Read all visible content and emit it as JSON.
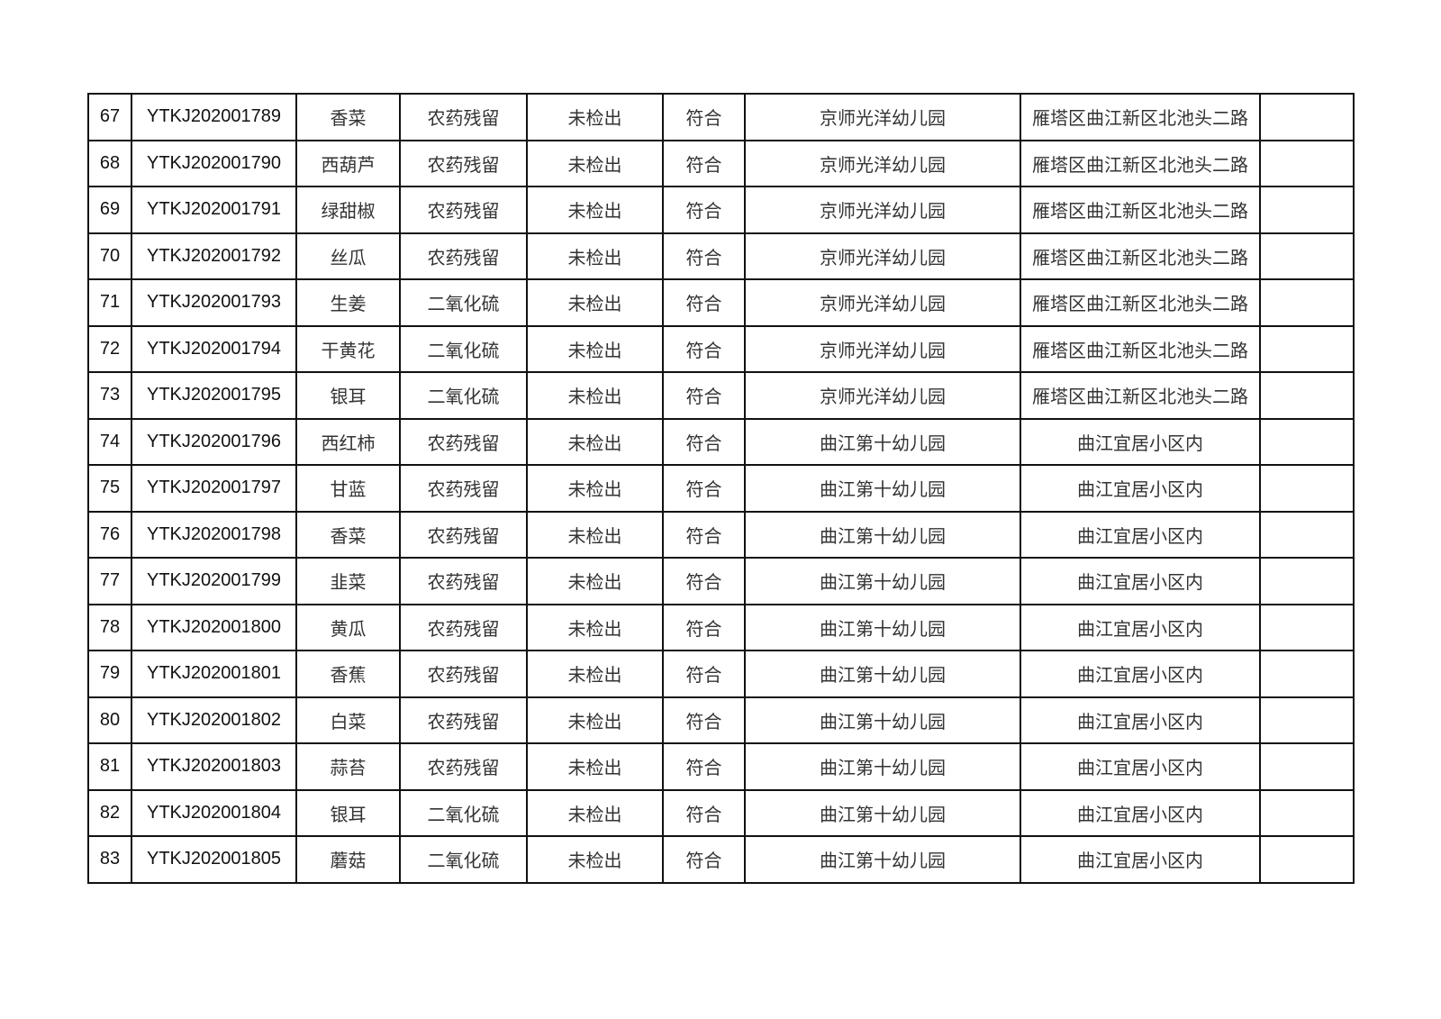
{
  "table": {
    "rows": [
      [
        "67",
        "YTKJ202001789",
        "香菜",
        "农药残留",
        "未检出",
        "符合",
        "京师光洋幼儿园",
        "雁塔区曲江新区北池头二路",
        ""
      ],
      [
        "68",
        "YTKJ202001790",
        "西葫芦",
        "农药残留",
        "未检出",
        "符合",
        "京师光洋幼儿园",
        "雁塔区曲江新区北池头二路",
        ""
      ],
      [
        "69",
        "YTKJ202001791",
        "绿甜椒",
        "农药残留",
        "未检出",
        "符合",
        "京师光洋幼儿园",
        "雁塔区曲江新区北池头二路",
        ""
      ],
      [
        "70",
        "YTKJ202001792",
        "丝瓜",
        "农药残留",
        "未检出",
        "符合",
        "京师光洋幼儿园",
        "雁塔区曲江新区北池头二路",
        ""
      ],
      [
        "71",
        "YTKJ202001793",
        "生姜",
        "二氧化硫",
        "未检出",
        "符合",
        "京师光洋幼儿园",
        "雁塔区曲江新区北池头二路",
        ""
      ],
      [
        "72",
        "YTKJ202001794",
        "干黄花",
        "二氧化硫",
        "未检出",
        "符合",
        "京师光洋幼儿园",
        "雁塔区曲江新区北池头二路",
        ""
      ],
      [
        "73",
        "YTKJ202001795",
        "银耳",
        "二氧化硫",
        "未检出",
        "符合",
        "京师光洋幼儿园",
        "雁塔区曲江新区北池头二路",
        ""
      ],
      [
        "74",
        "YTKJ202001796",
        "西红柿",
        "农药残留",
        "未检出",
        "符合",
        "曲江第十幼儿园",
        "曲江宜居小区内",
        ""
      ],
      [
        "75",
        "YTKJ202001797",
        "甘蓝",
        "农药残留",
        "未检出",
        "符合",
        "曲江第十幼儿园",
        "曲江宜居小区内",
        ""
      ],
      [
        "76",
        "YTKJ202001798",
        "香菜",
        "农药残留",
        "未检出",
        "符合",
        "曲江第十幼儿园",
        "曲江宜居小区内",
        ""
      ],
      [
        "77",
        "YTKJ202001799",
        "韭菜",
        "农药残留",
        "未检出",
        "符合",
        "曲江第十幼儿园",
        "曲江宜居小区内",
        ""
      ],
      [
        "78",
        "YTKJ202001800",
        "黄瓜",
        "农药残留",
        "未检出",
        "符合",
        "曲江第十幼儿园",
        "曲江宜居小区内",
        ""
      ],
      [
        "79",
        "YTKJ202001801",
        "香蕉",
        "农药残留",
        "未检出",
        "符合",
        "曲江第十幼儿园",
        "曲江宜居小区内",
        ""
      ],
      [
        "80",
        "YTKJ202001802",
        "白菜",
        "农药残留",
        "未检出",
        "符合",
        "曲江第十幼儿园",
        "曲江宜居小区内",
        ""
      ],
      [
        "81",
        "YTKJ202001803",
        "蒜苔",
        "农药残留",
        "未检出",
        "符合",
        "曲江第十幼儿园",
        "曲江宜居小区内",
        ""
      ],
      [
        "82",
        "YTKJ202001804",
        "银耳",
        "二氧化硫",
        "未检出",
        "符合",
        "曲江第十幼儿园",
        "曲江宜居小区内",
        ""
      ],
      [
        "83",
        "YTKJ202001805",
        "蘑菇",
        "二氧化硫",
        "未检出",
        "符合",
        "曲江第十幼儿园",
        "曲江宜居小区内",
        ""
      ]
    ]
  }
}
